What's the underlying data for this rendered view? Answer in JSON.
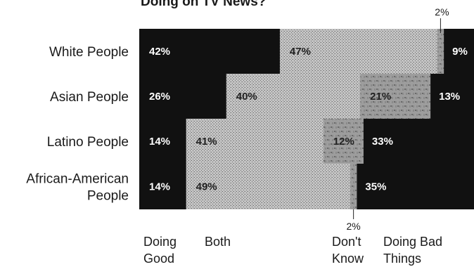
{
  "chart_data": {
    "type": "bar",
    "orientation": "horizontal",
    "stacked": true,
    "title": "Doing on TV News?",
    "categories": [
      [
        "White People"
      ],
      [
        "Asian People"
      ],
      [
        "Latino People"
      ],
      [
        "African-American",
        "People"
      ]
    ],
    "series": [
      {
        "key": "good",
        "name": [
          "Doing",
          "Good"
        ],
        "values": [
          42,
          26,
          14,
          14
        ],
        "labels": [
          "42%",
          "26%",
          "14%",
          "14%"
        ],
        "color": "#111111"
      },
      {
        "key": "both",
        "name": [
          "Both"
        ],
        "values": [
          47,
          40,
          41,
          49
        ],
        "labels": [
          "47%",
          "40%",
          "41%",
          "49%"
        ],
        "color": "#b9b9b9"
      },
      {
        "key": "dontknow",
        "name": [
          "Don't",
          "Know"
        ],
        "values": [
          2,
          21,
          12,
          2
        ],
        "labels": [
          "",
          "21%",
          "12%",
          ""
        ],
        "color": "#8c8c8c"
      },
      {
        "key": "bad",
        "name": [
          "Doing Bad",
          "Things"
        ],
        "values": [
          9,
          13,
          33,
          35
        ],
        "labels": [
          "9%",
          "13%",
          "33%",
          "35%"
        ],
        "color": "#111111"
      }
    ],
    "annotations": [
      "2%",
      "2%"
    ],
    "xlim": [
      0,
      100
    ],
    "grid": false
  }
}
